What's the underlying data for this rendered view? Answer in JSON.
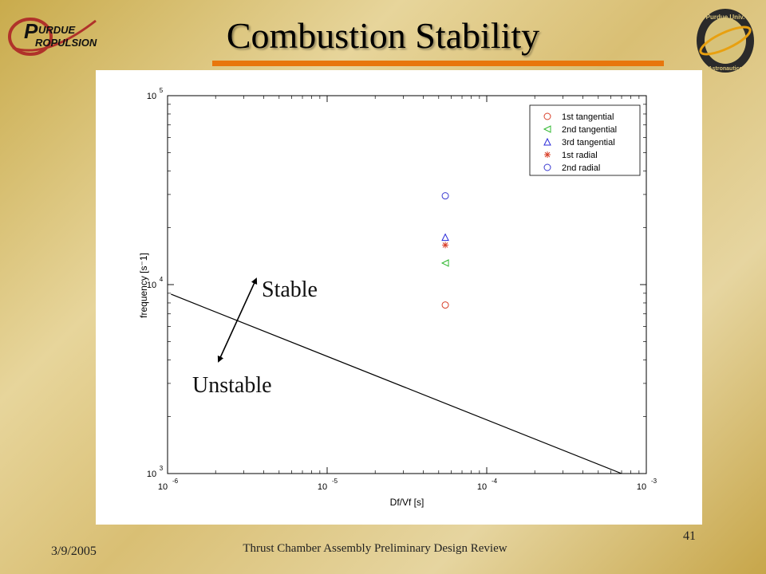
{
  "slide": {
    "title": "Combustion Stability",
    "date": "3/9/2005",
    "footer": "Thrust Chamber Assembly Preliminary Design Review",
    "page_number": "41",
    "logo_left_text": "PURDUE PROPULSION",
    "logo_right_text": "Purdue University Aeronautics & Astronautics"
  },
  "colors": {
    "accent_rule": "#e8760c",
    "series_1st_tangential": "#d9402a",
    "series_2nd_tangential": "#2fb82f",
    "series_3rd_tangential": "#2a2ad9",
    "series_1st_radial": "#d9402a",
    "series_2nd_radial": "#3a3ad0",
    "stability_line": "#000000"
  },
  "chart_data": {
    "type": "scatter",
    "xlabel": "Df/Vf [s]",
    "ylabel": "frequency [s⁻1]",
    "x_scale": "log",
    "y_scale": "log",
    "xlim": [
      1e-06,
      0.001
    ],
    "ylim": [
      1000,
      100000
    ],
    "x_ticks": [
      {
        "value": 1e-06,
        "base": "10",
        "exp": "-6"
      },
      {
        "value": 1e-05,
        "base": "10",
        "exp": "-5"
      },
      {
        "value": 0.0001,
        "base": "10",
        "exp": "-4"
      },
      {
        "value": 0.001,
        "base": "10",
        "exp": "-3"
      }
    ],
    "y_ticks": [
      {
        "value": 1000,
        "base": "10",
        "exp": "3"
      },
      {
        "value": 10000,
        "base": "10",
        "exp": "4"
      },
      {
        "value": 100000,
        "base": "10",
        "exp": "5"
      }
    ],
    "grid": false,
    "legend_position": "top-right",
    "series": [
      {
        "name": "1st tangential",
        "marker": "circle",
        "points": [
          {
            "x": 5.5e-05,
            "y": 7800
          }
        ]
      },
      {
        "name": "2nd tangential",
        "marker": "triangle-left",
        "points": [
          {
            "x": 5.5e-05,
            "y": 13000
          }
        ]
      },
      {
        "name": "3rd tangential",
        "marker": "triangle-up",
        "points": [
          {
            "x": 5.5e-05,
            "y": 17800
          }
        ]
      },
      {
        "name": "1st radial",
        "marker": "star",
        "points": [
          {
            "x": 5.5e-05,
            "y": 16200
          }
        ]
      },
      {
        "name": "2nd radial",
        "marker": "circle",
        "points": [
          {
            "x": 5.5e-05,
            "y": 29500
          }
        ]
      }
    ],
    "stability_boundary": [
      {
        "x": 1.05e-06,
        "y": 8900
      },
      {
        "x": 0.0007,
        "y": 1000
      }
    ],
    "annotations": [
      {
        "text": "Stable",
        "anchor": {
          "x": 2.6e-06,
          "y": 11000
        }
      },
      {
        "text": "Unstable",
        "anchor": {
          "x": 2.4e-06,
          "y": 3200
        }
      }
    ]
  }
}
